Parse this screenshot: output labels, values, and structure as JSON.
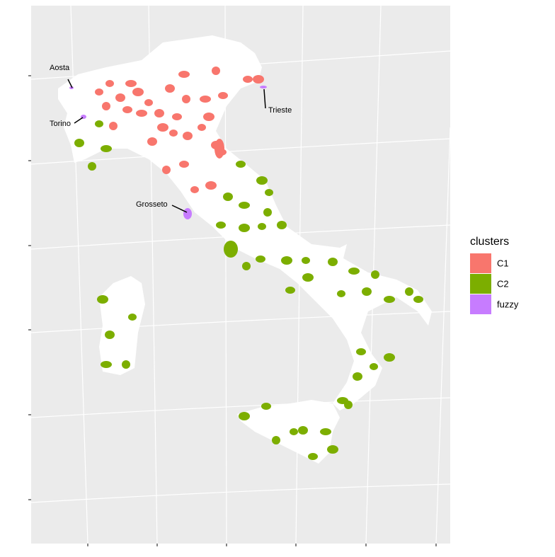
{
  "map": {
    "place_labels": [
      "Aosta",
      "Torino",
      "Trieste",
      "Grosseto"
    ],
    "legend": {
      "title": "clusters",
      "entries": [
        {
          "name": "C1",
          "color": "#F8766D"
        },
        {
          "name": "C2",
          "color": "#7CAE00"
        },
        {
          "name": "fuzzy",
          "color": "#C77CFF"
        }
      ]
    }
  }
}
